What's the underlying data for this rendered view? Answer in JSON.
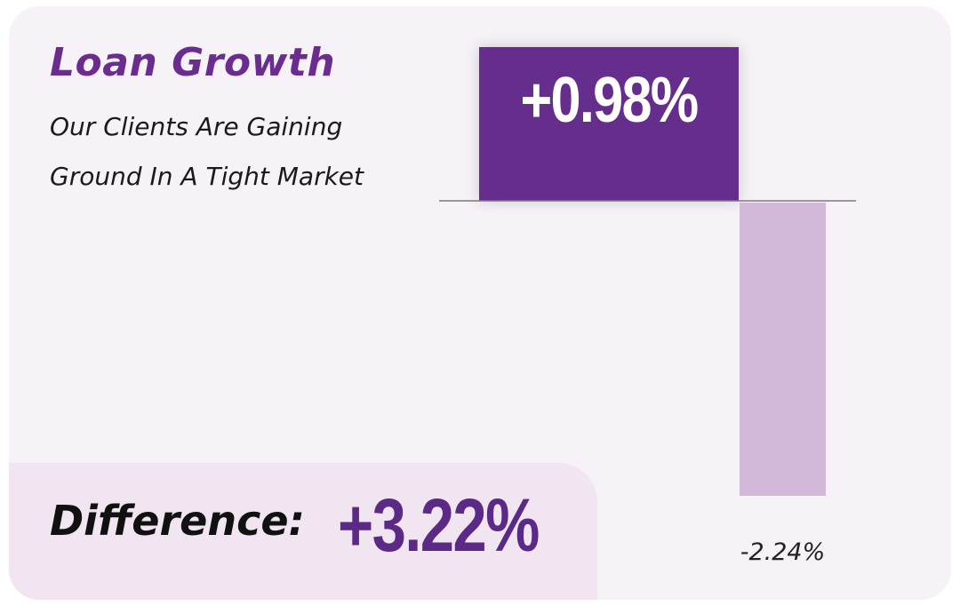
{
  "title": "Loan Growth",
  "subtitle": "Our Clients Are Gaining Ground In A Tight Market",
  "difference": {
    "label": "Difference:",
    "value": "+3.22%"
  },
  "colors": {
    "card_bg": "#f6f2f8",
    "title": "#6a2d8f",
    "positive_bar": "#662e8c",
    "negative_bar": "#d2b9d9",
    "difference_box": "#f0e5f1",
    "difference_value": "#5b2a86"
  },
  "chart_data": {
    "type": "bar",
    "categories": [
      "",
      ""
    ],
    "values": [
      0.98,
      -2.24
    ],
    "labels": [
      "+0.98%",
      "-2.24%"
    ],
    "ylim": [
      -2.24,
      0.98
    ],
    "grid": false,
    "baseline": 0,
    "title": "",
    "xlabel": "",
    "ylabel": ""
  }
}
